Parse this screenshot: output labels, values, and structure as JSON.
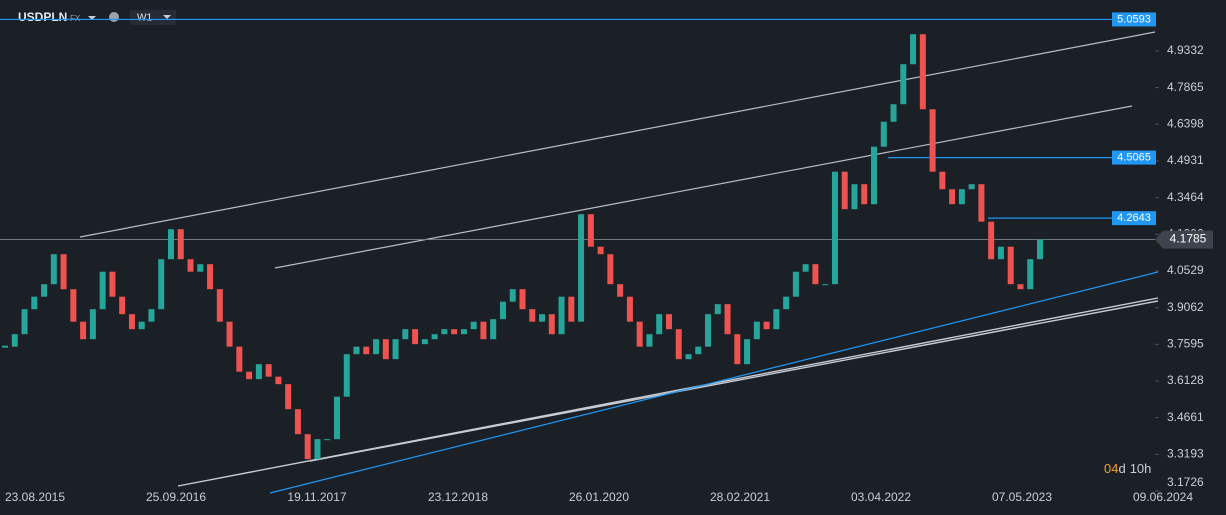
{
  "header": {
    "symbol": "USDPLN",
    "market": "FX",
    "timeframe": "W1"
  },
  "chart_data": {
    "type": "candlestick",
    "closes": [
      3.75,
      3.8,
      3.9,
      3.95,
      4.0,
      4.12,
      3.98,
      3.85,
      3.78,
      3.9,
      4.05,
      3.95,
      3.88,
      3.82,
      3.85,
      3.9,
      4.1,
      4.22,
      4.1,
      4.05,
      4.08,
      3.98,
      3.85,
      3.75,
      3.65,
      3.62,
      3.68,
      3.63,
      3.6,
      3.5,
      3.4,
      3.3,
      3.38,
      3.38,
      3.55,
      3.72,
      3.75,
      3.72,
      3.78,
      3.7,
      3.78,
      3.82,
      3.76,
      3.78,
      3.8,
      3.82,
      3.8,
      3.82,
      3.85,
      3.78,
      3.86,
      3.93,
      3.98,
      3.9,
      3.85,
      3.88,
      3.8,
      3.95,
      3.85,
      4.28,
      4.15,
      4.12,
      4.0,
      3.95,
      3.85,
      3.75,
      3.8,
      3.88,
      3.82,
      3.7,
      3.72,
      3.75,
      3.88,
      3.92,
      3.8,
      3.68,
      3.78,
      3.85,
      3.82,
      3.9,
      3.95,
      4.05,
      4.08,
      4.0,
      4.0,
      4.45,
      4.3,
      4.4,
      4.32,
      4.55,
      4.65,
      4.72,
      4.88,
      5.0,
      4.7,
      4.45,
      4.38,
      4.32,
      4.38,
      4.4,
      4.25,
      4.1,
      4.15,
      4.0,
      3.98,
      4.1,
      4.1785
    ],
    "colors": {
      "up": "#26a69a",
      "down": "#ef5350"
    },
    "ylim": [
      3.1726,
      5.137
    ],
    "yticks": [
      3.1726,
      3.3193,
      3.4661,
      3.6128,
      3.7595,
      3.9062,
      4.0529,
      4.1996,
      4.3464,
      4.4931,
      4.6398,
      4.7865,
      4.9332
    ],
    "x_labels": [
      "23.08.2015",
      "25.09.2016",
      "19.11.2017",
      "23.12.2018",
      "26.01.2020",
      "28.02.2021",
      "03.04.2022",
      "07.05.2023",
      "09.06.2024"
    ],
    "price_levels": [
      5.0593,
      4.5065,
      4.2643
    ],
    "last_price": 4.1785,
    "countdown": [
      "04",
      "d",
      "10",
      "h"
    ]
  }
}
